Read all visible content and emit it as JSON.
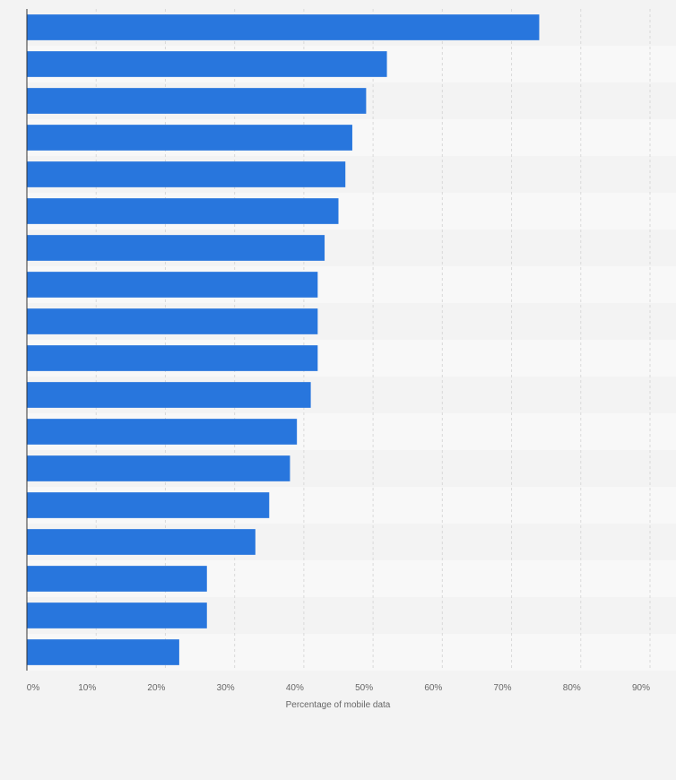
{
  "chart_data": {
    "type": "bar",
    "orientation": "horizontal",
    "title": "",
    "xlabel": "Percentage of mobile data",
    "ylabel": "",
    "xlim": [
      0,
      90
    ],
    "x_ticks": [
      0,
      10,
      20,
      30,
      40,
      50,
      60,
      70,
      80,
      90
    ],
    "x_tick_labels": [
      "0%",
      "10%",
      "20%",
      "30%",
      "40%",
      "50%",
      "60%",
      "70%",
      "80%",
      "90%"
    ],
    "categories": [
      "",
      "",
      "",
      "",
      "",
      "",
      "",
      "",
      "",
      "",
      "",
      "",
      "",
      "",
      "",
      "",
      "",
      ""
    ],
    "values": [
      74,
      52,
      49,
      47,
      46,
      45,
      43,
      42,
      42,
      42,
      41,
      39,
      38,
      35,
      33,
      26,
      26,
      22
    ],
    "grid": true,
    "colors": {
      "bar": "#2876dd",
      "band_even": "#f8f8f8",
      "band_odd": "#f3f3f3",
      "grid": "#d9d9d9",
      "axis": "#333333"
    }
  }
}
